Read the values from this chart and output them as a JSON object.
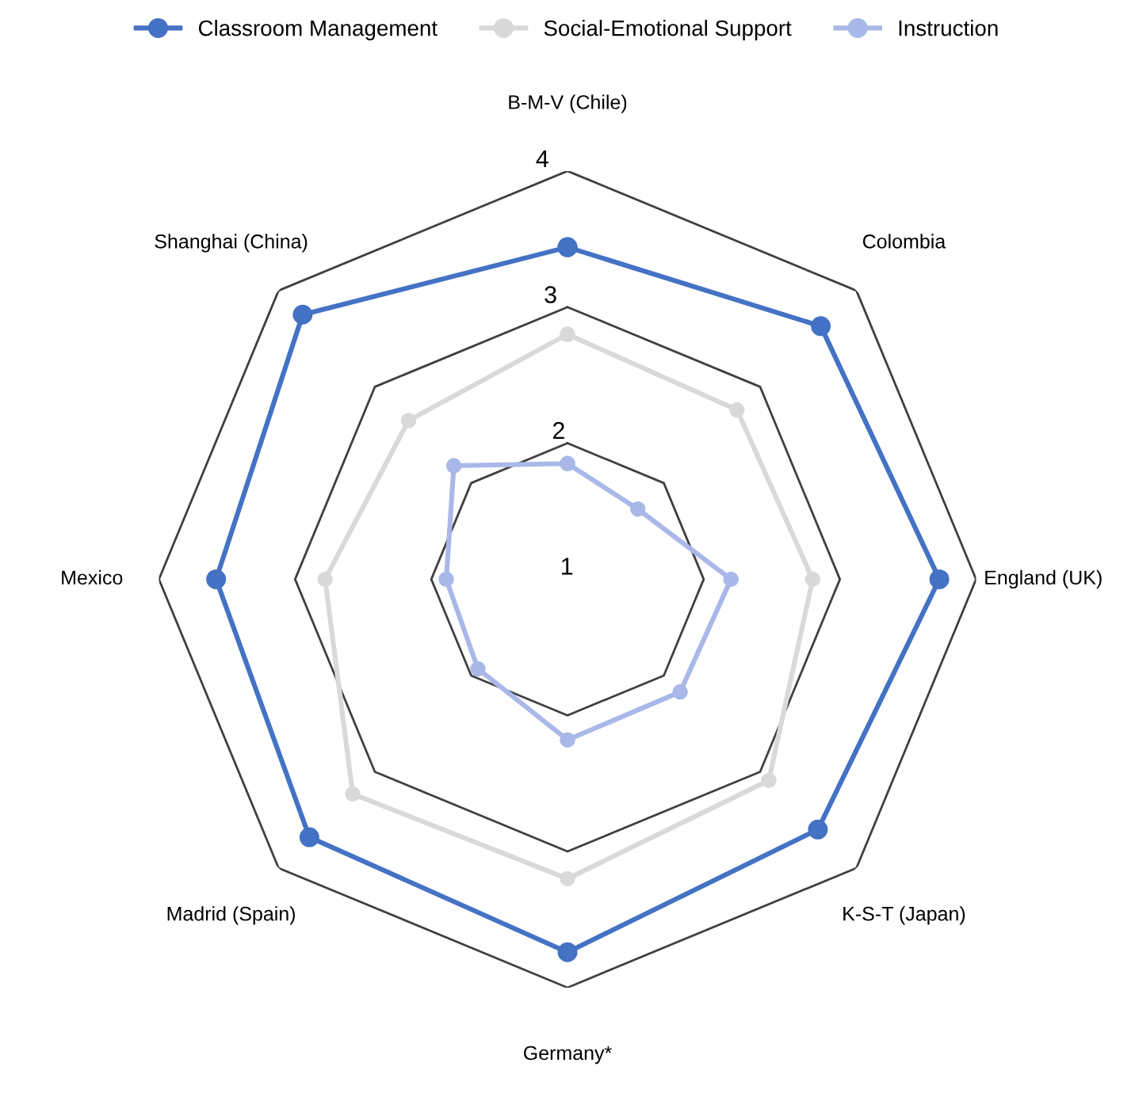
{
  "chart_data": {
    "type": "radar",
    "categories": [
      "B-M-V (Chile)",
      "Colombia",
      "England (UK)",
      "K-S-T (Japan)",
      "Germany*",
      "Madrid (Spain)",
      "Mexico",
      "Shanghai (China)"
    ],
    "series": [
      {
        "name": "Classroom Management",
        "color": "#4472c4",
        "values": [
          3.44,
          3.63,
          3.73,
          3.6,
          3.74,
          3.68,
          3.58,
          3.75
        ]
      },
      {
        "name": "Social-Emotional Support",
        "color": "#d9d9d9",
        "values": [
          2.8,
          2.76,
          2.8,
          3.09,
          3.2,
          3.23,
          2.78,
          2.65
        ]
      },
      {
        "name": "Instruction",
        "color": "#a9b8e8",
        "values": [
          1.85,
          1.73,
          2.2,
          2.17,
          2.18,
          1.93,
          1.89,
          2.18
        ]
      }
    ],
    "ylim": [
      1,
      4
    ],
    "yticks": [
      1,
      2,
      3,
      4
    ],
    "grid": true,
    "legend": "top",
    "marker": "circle"
  }
}
